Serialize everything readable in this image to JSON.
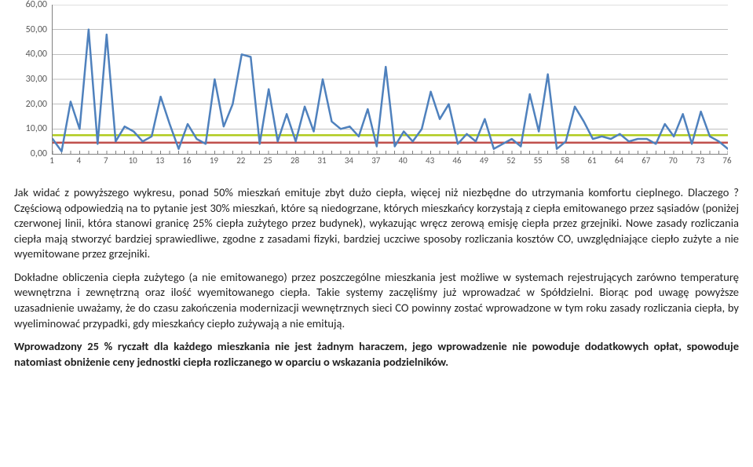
{
  "chart": {
    "type": "line",
    "ylim": [
      0,
      60
    ],
    "ytick_step": 10,
    "ytick_labels": [
      "0,00",
      "10,00",
      "20,00",
      "30,00",
      "40,00",
      "50,00",
      "60,00"
    ],
    "x_start": 1,
    "x_end": 76,
    "xtick_step": 3,
    "xtick_labels": [
      "1",
      "4",
      "7",
      "10",
      "13",
      "16",
      "19",
      "22",
      "25",
      "28",
      "31",
      "34",
      "37",
      "40",
      "43",
      "46",
      "49",
      "52",
      "55",
      "58",
      "61",
      "64",
      "67",
      "70",
      "73",
      "76"
    ],
    "gridline_color": "#bfbfbf",
    "axis_color": "#808080",
    "label_color": "#595959",
    "label_fontsize": 12,
    "background_color": "#ffffff",
    "series": {
      "color": "#4f81bd",
      "line_width": 2.5,
      "values": [
        6,
        1,
        21,
        10,
        50,
        4,
        48,
        5,
        11,
        9,
        5,
        7,
        23,
        12,
        2,
        12,
        6,
        4,
        30,
        11,
        20,
        40,
        39,
        4,
        26,
        5,
        16,
        5,
        19,
        9,
        30,
        13,
        10,
        11,
        7,
        18,
        3,
        35,
        3,
        9,
        5,
        10,
        25,
        14,
        20,
        4,
        8,
        5,
        14,
        2,
        4,
        6,
        3,
        24,
        9,
        32,
        2,
        5,
        19,
        13,
        6,
        7,
        6,
        8,
        5,
        6,
        6,
        4,
        12,
        7,
        16,
        4,
        17,
        7,
        5,
        2
      ]
    },
    "reference_lines": [
      {
        "y": 7.5,
        "color": "#b0cb1f",
        "line_width": 2.5
      },
      {
        "y": 4.5,
        "color": "#c0504d",
        "line_width": 2.5
      }
    ]
  },
  "paragraphs": {
    "p1": "Jak widać z powyższego wykresu, ponad 50% mieszkań emituje zbyt dużo ciepła, więcej niż niezbędne do utrzymania komfortu cieplnego. Dlaczego ? Częściową odpowiedzią na to pytanie jest 30% mieszkań, które są niedogrzane, których mieszkańcy korzystają z ciepła emitowanego przez sąsiadów (poniżej czerwonej linii, która stanowi granicę 25% ciepła zużytego przez budynek), wykazując wręcz zerową emisję ciepła przez grzejniki. Nowe zasady rozliczania ciepła mają stworzyć bardziej sprawiedliwe, zgodne z zasadami fizyki, bardziej uczciwe sposoby rozliczania kosztów CO, uwzględniające ciepło zużyte a nie wyemitowane przez grzejniki.",
    "p2": "Dokładne obliczenia ciepła zużytego (a nie emitowanego) przez poszczególne mieszkania jest możliwe w systemach rejestrujących zarówno temperaturę wewnętrzna i zewnętrzną oraz ilość wyemitowanego ciepła. Takie systemy zaczęliśmy już wprowadzać w Spółdzielni. Biorąc pod uwagę powyższe uzasadnienie uważamy, że do czasu zakończenia modernizacji wewnętrznych sieci CO powinny zostać wprowadzone w tym roku zasady rozliczania ciepła, by wyeliminować przypadki, gdy mieszkańcy ciepło zużywają a nie emitują.",
    "p3": "Wprowadzony 25 % ryczałt dla każdego mieszkania nie jest żadnym haraczem, jego wprowadzenie nie powoduje dodatkowych opłat, spowoduje natomiast obniżenie ceny jednostki ciepła rozliczanego w oparciu o wskazania podzielników."
  }
}
